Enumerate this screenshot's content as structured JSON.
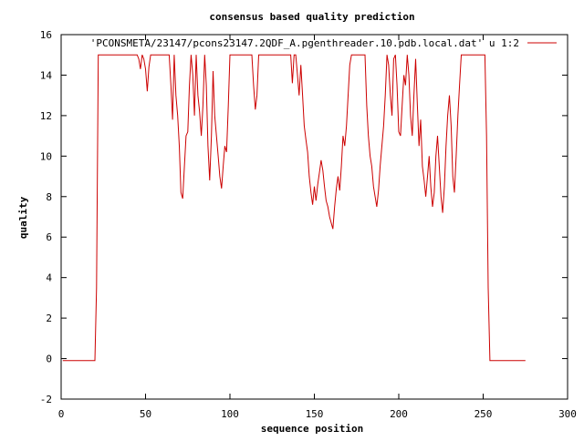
{
  "chart_data": {
    "type": "line",
    "title": "consensus based quality prediction",
    "xlabel": "sequence position",
    "ylabel": "quality",
    "xlim": [
      0,
      300
    ],
    "ylim": [
      -2,
      16
    ],
    "x_ticks": [
      0,
      50,
      100,
      150,
      200,
      250,
      300
    ],
    "y_ticks": [
      -2,
      0,
      2,
      4,
      6,
      8,
      10,
      12,
      14,
      16
    ],
    "grid": false,
    "legend_position": "top-right",
    "colors": {
      "series": "#cc0000",
      "axes": "#000000",
      "background": "#ffffff"
    },
    "series": [
      {
        "name": "'PCONSMETA/23147/pcons23147.2QDF_A.pgenthreader.10.pdb.local.dat' u 1:2",
        "points": [
          [
            1,
            -0.1
          ],
          [
            20,
            -0.1
          ],
          [
            21,
            3.5
          ],
          [
            22,
            15.0
          ],
          [
            45,
            15.0
          ],
          [
            46,
            14.8
          ],
          [
            47,
            14.3
          ],
          [
            48,
            15.0
          ],
          [
            49,
            14.8
          ],
          [
            50,
            14.3
          ],
          [
            51,
            13.2
          ],
          [
            52,
            14.4
          ],
          [
            53,
            15.0
          ],
          [
            64,
            15.0
          ],
          [
            65,
            13.5
          ],
          [
            66,
            11.8
          ],
          [
            67,
            15.0
          ],
          [
            68,
            13.0
          ],
          [
            69,
            12.0
          ],
          [
            70,
            10.5
          ],
          [
            71,
            8.2
          ],
          [
            72,
            7.9
          ],
          [
            73,
            9.5
          ],
          [
            74,
            11.0
          ],
          [
            75,
            11.2
          ],
          [
            76,
            13.5
          ],
          [
            77,
            15.0
          ],
          [
            78,
            14.0
          ],
          [
            79,
            12.0
          ],
          [
            80,
            15.0
          ],
          [
            81,
            13.0
          ],
          [
            82,
            12.2
          ],
          [
            83,
            11.0
          ],
          [
            84,
            12.5
          ],
          [
            85,
            15.0
          ],
          [
            86,
            13.5
          ],
          [
            87,
            10.5
          ],
          [
            88,
            8.8
          ],
          [
            89,
            11.0
          ],
          [
            90,
            14.2
          ],
          [
            91,
            12.0
          ],
          [
            92,
            11.0
          ],
          [
            93,
            10.0
          ],
          [
            94,
            9.0
          ],
          [
            95,
            8.4
          ],
          [
            96,
            9.5
          ],
          [
            97,
            10.5
          ],
          [
            98,
            10.2
          ],
          [
            99,
            12.5
          ],
          [
            100,
            15.0
          ],
          [
            113,
            15.0
          ],
          [
            114,
            13.5
          ],
          [
            115,
            12.3
          ],
          [
            116,
            13.0
          ],
          [
            117,
            15.0
          ],
          [
            136,
            15.0
          ],
          [
            137,
            13.6
          ],
          [
            138,
            15.0
          ],
          [
            139,
            15.0
          ],
          [
            140,
            14.0
          ],
          [
            141,
            13.0
          ],
          [
            142,
            14.5
          ],
          [
            143,
            13.0
          ],
          [
            144,
            11.5
          ],
          [
            145,
            10.8
          ],
          [
            146,
            10.2
          ],
          [
            147,
            9.0
          ],
          [
            148,
            8.2
          ],
          [
            149,
            7.6
          ],
          [
            150,
            8.5
          ],
          [
            151,
            7.8
          ],
          [
            152,
            8.6
          ],
          [
            153,
            9.2
          ],
          [
            154,
            9.8
          ],
          [
            155,
            9.3
          ],
          [
            156,
            8.5
          ],
          [
            157,
            7.8
          ],
          [
            158,
            7.5
          ],
          [
            159,
            7.0
          ],
          [
            160,
            6.7
          ],
          [
            161,
            6.4
          ],
          [
            162,
            7.5
          ],
          [
            163,
            8.4
          ],
          [
            164,
            9.0
          ],
          [
            165,
            8.3
          ],
          [
            166,
            9.5
          ],
          [
            167,
            11.0
          ],
          [
            168,
            10.5
          ],
          [
            169,
            11.5
          ],
          [
            170,
            13.0
          ],
          [
            171,
            14.5
          ],
          [
            172,
            15.0
          ],
          [
            180,
            15.0
          ],
          [
            181,
            12.5
          ],
          [
            182,
            11.0
          ],
          [
            183,
            10.0
          ],
          [
            184,
            9.5
          ],
          [
            185,
            8.5
          ],
          [
            186,
            8.0
          ],
          [
            187,
            7.5
          ],
          [
            188,
            8.3
          ],
          [
            189,
            9.5
          ],
          [
            190,
            10.5
          ],
          [
            191,
            11.5
          ],
          [
            192,
            13.0
          ],
          [
            193,
            15.0
          ],
          [
            194,
            14.5
          ],
          [
            195,
            13.0
          ],
          [
            196,
            12.0
          ],
          [
            197,
            14.8
          ],
          [
            198,
            15.0
          ],
          [
            199,
            13.5
          ],
          [
            200,
            11.2
          ],
          [
            201,
            11.0
          ],
          [
            202,
            12.5
          ],
          [
            203,
            14.0
          ],
          [
            204,
            13.5
          ],
          [
            205,
            15.0
          ],
          [
            206,
            14.0
          ],
          [
            207,
            12.0
          ],
          [
            208,
            11.0
          ],
          [
            209,
            13.0
          ],
          [
            210,
            14.8
          ],
          [
            211,
            12.5
          ],
          [
            212,
            10.5
          ],
          [
            213,
            11.8
          ],
          [
            214,
            9.5
          ],
          [
            215,
            8.8
          ],
          [
            216,
            8.0
          ],
          [
            217,
            9.0
          ],
          [
            218,
            10.0
          ],
          [
            219,
            8.5
          ],
          [
            220,
            7.5
          ],
          [
            221,
            8.2
          ],
          [
            222,
            10.0
          ],
          [
            223,
            11.0
          ],
          [
            224,
            9.5
          ],
          [
            225,
            8.0
          ],
          [
            226,
            7.2
          ],
          [
            227,
            8.5
          ],
          [
            228,
            10.5
          ],
          [
            229,
            12.0
          ],
          [
            230,
            13.0
          ],
          [
            231,
            11.5
          ],
          [
            232,
            9.0
          ],
          [
            233,
            8.2
          ],
          [
            234,
            10.0
          ],
          [
            235,
            12.0
          ],
          [
            236,
            13.5
          ],
          [
            237,
            15.0
          ],
          [
            251,
            15.0
          ],
          [
            252,
            11.0
          ],
          [
            253,
            3.5
          ],
          [
            254,
            -0.1
          ],
          [
            275,
            -0.1
          ]
        ]
      }
    ]
  }
}
